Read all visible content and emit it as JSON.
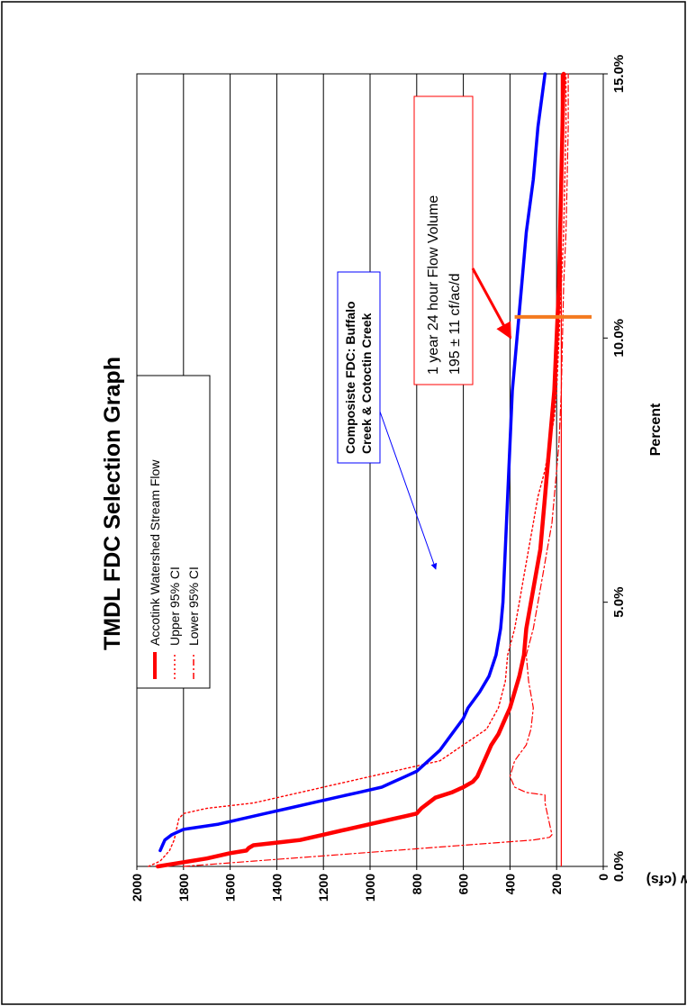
{
  "colors": {
    "primary": "#ff0000",
    "composite": "#0000ff",
    "marker": "#f47a1f",
    "grid": "#000000",
    "frame": "#000000"
  },
  "chart_data": {
    "type": "line",
    "title": "TMDL FDC Selection Graph",
    "xlabel": "Percent",
    "ylabel": "Flow (cfs)",
    "xlim": [
      0,
      15
    ],
    "ylim": [
      0,
      2000
    ],
    "x_ticks": [
      0,
      5,
      10,
      15
    ],
    "x_tick_labels": [
      "0.0%",
      "5.0%",
      "10.0%",
      "15.0%"
    ],
    "y_ticks": [
      0,
      200,
      400,
      600,
      800,
      1000,
      1200,
      1400,
      1600,
      1800,
      2000
    ],
    "y_tick_labels": [
      "0",
      "200",
      "400",
      "600",
      "800",
      "1000",
      "1200",
      "1400",
      "1600",
      "1800",
      "2000"
    ],
    "grid": true,
    "legend_position": "top-left",
    "legend": [
      {
        "label": "Accotink Watershed Stream Flow",
        "style": "solid"
      },
      {
        "label": "Upper 95% CI",
        "style": "dotted"
      },
      {
        "label": "Lower 95% CI",
        "style": "dash-dot"
      }
    ],
    "series": [
      {
        "name": "Accotink Watershed Stream Flow",
        "style": "solid-thick",
        "color": "#ff0000",
        "x": [
          0.0,
          0.15,
          0.25,
          0.3,
          0.35,
          0.4,
          0.45,
          0.5,
          0.6,
          0.7,
          0.8,
          0.9,
          0.95,
          1.0,
          1.1,
          1.2,
          1.3,
          1.4,
          1.5,
          1.6,
          1.7,
          1.8,
          1.9,
          2.0,
          2.1,
          2.3,
          2.5,
          2.8,
          3.0,
          3.3,
          3.6,
          4.0,
          4.5,
          5.0,
          5.5,
          6.0,
          6.5,
          7.0,
          7.5,
          8.0,
          9.0,
          10.0,
          11.0,
          12.0,
          13.0,
          14.0,
          15.0
        ],
        "y": [
          1910,
          1700,
          1600,
          1530,
          1520,
          1500,
          1400,
          1300,
          1200,
          1100,
          1000,
          900,
          850,
          800,
          780,
          750,
          720,
          650,
          600,
          560,
          540,
          530,
          520,
          510,
          500,
          480,
          450,
          420,
          400,
          380,
          360,
          340,
          330,
          310,
          290,
          270,
          260,
          250,
          240,
          230,
          210,
          200,
          190,
          185,
          180,
          175,
          170
        ]
      },
      {
        "name": "Upper 95% CI",
        "style": "dotted",
        "color": "#ff0000",
        "x": [
          0.0,
          0.1,
          0.2,
          0.3,
          0.5,
          0.7,
          0.9,
          1.0,
          1.1,
          1.2,
          1.4,
          1.6,
          1.8,
          2.0,
          2.3,
          2.6,
          3.0,
          3.5,
          4.0,
          4.5,
          5.0,
          5.5,
          6.0,
          6.5,
          7.0,
          7.5,
          8.0,
          8.5,
          9.0,
          10.0,
          11.0,
          12.0,
          13.0,
          14.0,
          15.0
        ],
        "y": [
          1950,
          1900,
          1880,
          1860,
          1840,
          1830,
          1820,
          1800,
          1700,
          1500,
          1300,
          1100,
          900,
          700,
          600,
          500,
          450,
          420,
          410,
          380,
          360,
          340,
          320,
          300,
          280,
          250,
          230,
          210,
          200,
          190,
          180,
          170,
          165,
          160,
          160
        ]
      },
      {
        "name": "Lower 95% CI",
        "style": "dash-dot",
        "color": "#ff0000",
        "x": [
          0.0,
          0.1,
          0.2,
          0.3,
          0.4,
          0.5,
          0.55,
          0.6,
          0.8,
          1.0,
          1.2,
          1.35,
          1.4,
          1.5,
          1.7,
          2.0,
          2.3,
          2.6,
          3.0,
          3.5,
          4.0,
          4.5,
          5.0,
          5.5,
          6.0,
          6.5,
          7.0,
          7.5,
          8.0,
          9.0,
          10.0,
          11.0,
          12.0,
          13.0,
          14.0,
          15.0
        ],
        "y": [
          1800,
          1500,
          1200,
          900,
          600,
          300,
          230,
          220,
          230,
          240,
          250,
          250,
          330,
          380,
          400,
          380,
          330,
          310,
          300,
          320,
          330,
          300,
          280,
          260,
          240,
          220,
          210,
          200,
          190,
          180,
          175,
          170,
          160,
          155,
          150,
          150
        ]
      },
      {
        "name": "Composite FDC: Buffalo Creek & Cotoctin Creek",
        "style": "solid-thick",
        "color": "#0000ff",
        "x": [
          0.3,
          0.4,
          0.5,
          0.6,
          0.7,
          0.8,
          0.9,
          1.0,
          1.1,
          1.2,
          1.3,
          1.4,
          1.5,
          1.6,
          1.7,
          1.8,
          2.0,
          2.2,
          2.5,
          2.8,
          3.0,
          3.3,
          3.6,
          4.0,
          4.5,
          5.0,
          6.0,
          7.0,
          8.0,
          9.0,
          10.0,
          11.0,
          12.0,
          13.0,
          14.0,
          15.0
        ],
        "y": [
          1900,
          1890,
          1880,
          1850,
          1800,
          1650,
          1550,
          1450,
          1350,
          1250,
          1150,
          1050,
          950,
          900,
          850,
          800,
          750,
          700,
          650,
          600,
          580,
          530,
          490,
          460,
          440,
          430,
          420,
          410,
          400,
          390,
          370,
          350,
          330,
          300,
          280,
          250
        ]
      }
    ],
    "reference_lines": [
      {
        "orientation": "flow",
        "value": 180,
        "color": "#ff0000"
      },
      {
        "orientation": "percent",
        "value": 10.4,
        "y_from": 380,
        "y_to": 50,
        "color": "#f47a1f"
      }
    ],
    "annotations": {
      "composite_label": [
        "Composiste FDC: Buffalo",
        "Creek & Cotoctin Creek"
      ],
      "volume_label": [
        "1 year 24 hour Flow Volume",
        "195 ± 11 cf/ac/d"
      ]
    }
  }
}
